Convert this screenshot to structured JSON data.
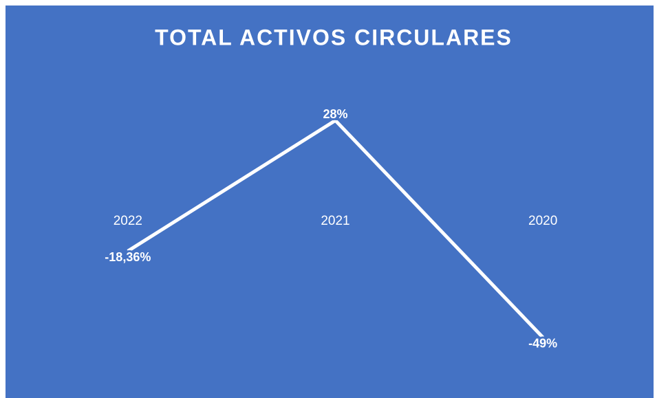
{
  "chart_data": {
    "type": "line",
    "title": "TOTAL ACTIVOS CIRCULARES",
    "categories": [
      "2022",
      "2021",
      "2020"
    ],
    "values": [
      -18.36,
      28,
      -49
    ],
    "value_labels": [
      "-18,36%",
      "28%",
      "-49%"
    ],
    "color": "#ffffff",
    "ylim": [
      -60,
      40
    ]
  }
}
